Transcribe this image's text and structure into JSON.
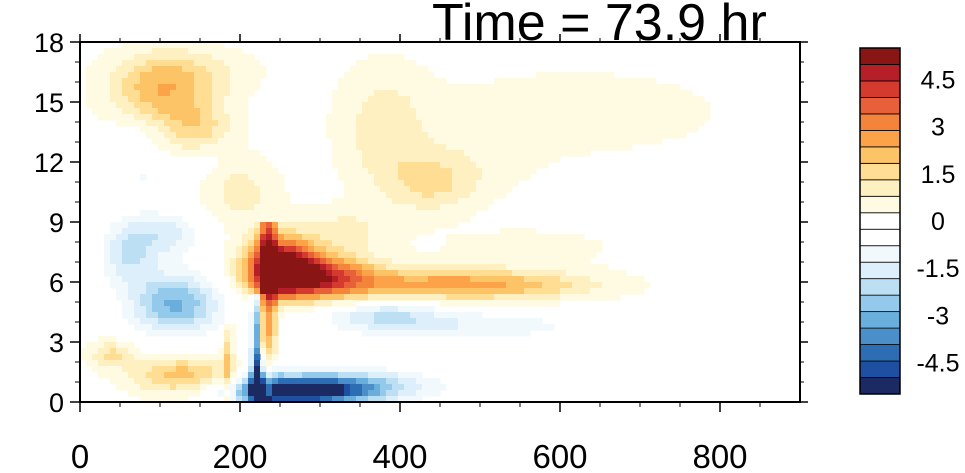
{
  "chart_data": {
    "type": "heatmap",
    "title": "Time = 73.9 hr",
    "xlim": [
      0,
      900
    ],
    "ylim": [
      0,
      18
    ],
    "x_ticks": [
      0,
      200,
      400,
      600,
      800
    ],
    "x_tick_labels": [
      "0",
      "200",
      "400",
      "600",
      "800"
    ],
    "y_ticks": [
      0,
      3,
      6,
      9,
      12,
      15,
      18
    ],
    "y_tick_labels": [
      "0",
      "3",
      "6",
      "9",
      "12",
      "15",
      "18"
    ],
    "colorbar": {
      "min": -5.5,
      "max": 5.5,
      "labels": [
        4.5,
        3,
        1.5,
        0,
        -1.5,
        -3,
        -4.5
      ],
      "label_text": [
        "4.5",
        "3",
        "1.5",
        "0",
        "-1.5",
        "-3",
        "-4.5"
      ],
      "colors": [
        "#1b2a63",
        "#1f4fa0",
        "#2d6db3",
        "#4a8fca",
        "#6aaedc",
        "#93c9ea",
        "#bddff3",
        "#ddeffa",
        "#f2f9fd",
        "#ffffff",
        "#ffffff",
        "#fffbe3",
        "#fff0c2",
        "#ffdd93",
        "#fdc367",
        "#fca349",
        "#f5843b",
        "#e8603a",
        "#d43a2e",
        "#b61f27",
        "#8a1515"
      ]
    },
    "features": [
      {
        "x": 250,
        "y": 6.8,
        "sx": 30,
        "sy": 1.0,
        "value": 5.5
      },
      {
        "x": 300,
        "y": 6.3,
        "sx": 45,
        "sy": 0.8,
        "value": 3.5
      },
      {
        "x": 420,
        "y": 5.9,
        "sx": 110,
        "sy": 0.6,
        "value": 2.0
      },
      {
        "x": 540,
        "y": 5.8,
        "sx": 90,
        "sy": 0.5,
        "value": 1.2
      },
      {
        "x": 270,
        "y": 0.5,
        "sx": 60,
        "sy": 0.5,
        "value": -4.5
      },
      {
        "x": 330,
        "y": 0.8,
        "sx": 80,
        "sy": 0.6,
        "value": -2.5
      },
      {
        "x": 230,
        "y": 1.2,
        "sx": 12,
        "sy": 0.9,
        "value": -3.5
      },
      {
        "x": 480,
        "y": 3.8,
        "sx": 120,
        "sy": 0.6,
        "value": -1.2
      },
      {
        "x": 380,
        "y": 4.4,
        "sx": 50,
        "sy": 0.5,
        "value": -1.5
      },
      {
        "x": 120,
        "y": 4.9,
        "sx": 40,
        "sy": 1.1,
        "value": -3.0
      },
      {
        "x": 60,
        "y": 7.5,
        "sx": 25,
        "sy": 1.2,
        "value": -1.8
      },
      {
        "x": 110,
        "y": 8.4,
        "sx": 30,
        "sy": 0.8,
        "value": -1.5
      },
      {
        "x": 130,
        "y": 1.3,
        "sx": 45,
        "sy": 0.7,
        "value": 2.2
      },
      {
        "x": 40,
        "y": 2.4,
        "sx": 20,
        "sy": 0.5,
        "value": 1.4
      },
      {
        "x": 100,
        "y": 15.2,
        "sx": 45,
        "sy": 1.3,
        "value": 1.9
      },
      {
        "x": 150,
        "y": 13.6,
        "sx": 30,
        "sy": 1.0,
        "value": 1.2
      },
      {
        "x": 130,
        "y": 16.5,
        "sx": 60,
        "sy": 0.9,
        "value": 1.0
      },
      {
        "x": 380,
        "y": 13.8,
        "sx": 40,
        "sy": 2.2,
        "value": 1.0
      },
      {
        "x": 440,
        "y": 10.8,
        "sx": 40,
        "sy": 1.0,
        "value": 1.1
      },
      {
        "x": 200,
        "y": 10.5,
        "sx": 35,
        "sy": 1.2,
        "value": 1.0
      },
      {
        "x": 620,
        "y": 14.5,
        "sx": 130,
        "sy": 1.5,
        "value": 0.6
      },
      {
        "x": 470,
        "y": 11.8,
        "sx": 70,
        "sy": 1.2,
        "value": 0.5
      },
      {
        "x": 330,
        "y": 8.6,
        "sx": 40,
        "sy": 0.8,
        "value": 0.9
      },
      {
        "x": 560,
        "y": 7.8,
        "sx": 100,
        "sy": 0.8,
        "value": 0.4
      },
      {
        "x": 80,
        "y": 11.2,
        "sx": 30,
        "sy": 0.8,
        "value": -0.8
      },
      {
        "x": 70,
        "y": 13.5,
        "sx": 25,
        "sy": 0.8,
        "value": -0.6
      },
      {
        "x": 160,
        "y": 12.2,
        "sx": 20,
        "sy": 0.6,
        "value": -0.5
      }
    ],
    "ridges": [
      {
        "x0": 232,
        "y0": 0.6,
        "x1": 240,
        "y1": 8.8,
        "width": 5,
        "value": 5.0
      },
      {
        "x0": 222,
        "y0": 0.4,
        "x1": 232,
        "y1": 5.0,
        "width": 5,
        "value": -3.5
      },
      {
        "x0": 185,
        "y0": 0.2,
        "x1": 190,
        "y1": 3.5,
        "width": 4,
        "value": 1.6
      }
    ]
  }
}
